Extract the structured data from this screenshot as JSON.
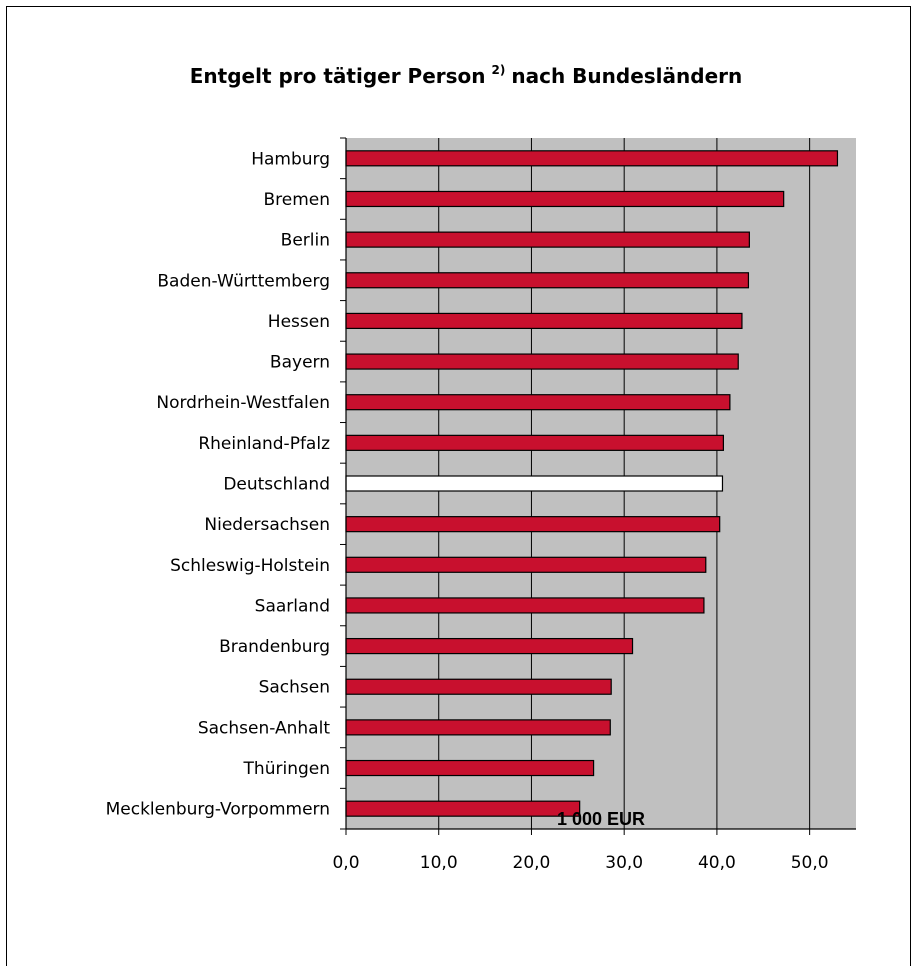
{
  "chart_data": {
    "type": "bar",
    "orientation": "horizontal",
    "title": "Entgelt pro tätiger Person",
    "title_superscript": "2)",
    "title_suffix": "nach Bundesländern",
    "xlabel": "1 000 EUR",
    "ylabel": "",
    "xlim": [
      0,
      55
    ],
    "x_ticks": [
      "0,0",
      "10,0",
      "20,0",
      "30,0",
      "40,0",
      "50,0"
    ],
    "grid": true,
    "categories": [
      "Hamburg",
      "Bremen",
      "Berlin",
      "Baden-Württemberg",
      "Hessen",
      "Bayern",
      "Nordrhein-Westfalen",
      "Rheinland-Pfalz",
      "Deutschland",
      "Niedersachsen",
      "Schleswig-Holstein",
      "Saarland",
      "Brandenburg",
      "Sachsen",
      "Sachsen-Anhalt",
      "Thüringen",
      "Mecklenburg-Vorpommern"
    ],
    "values": [
      53.0,
      47.2,
      43.5,
      43.4,
      42.7,
      42.3,
      41.4,
      40.7,
      40.6,
      40.3,
      38.8,
      38.6,
      30.9,
      28.6,
      28.5,
      26.7,
      25.2
    ],
    "highlight_category": "Deutschland",
    "colors": {
      "bar": "#c8102e",
      "highlight_bar": "#ffffff",
      "plot_background": "#c0c0c0",
      "gridline": "#000000"
    }
  }
}
